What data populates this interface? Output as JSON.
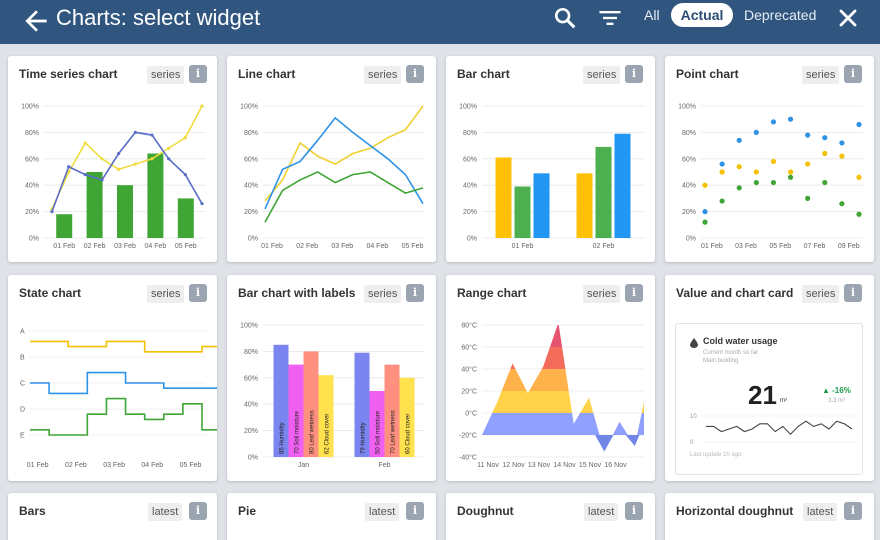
{
  "header": {
    "title": "Charts: select widget",
    "filters": [
      "All",
      "Actual",
      "Deprecated"
    ],
    "active_filter": "Actual",
    "icons": [
      "arrow-back-icon",
      "search-icon",
      "filter-list-icon",
      "close-icon"
    ]
  },
  "colors": {
    "topbar": "#305680",
    "background": "#dfe3e8",
    "green": "#3fa535",
    "yellow": "#f5d000",
    "blue": "#2e92e6",
    "orange": "#ffb400"
  },
  "cards": [
    {
      "title": "Time series chart",
      "badge": "series"
    },
    {
      "title": "Line chart",
      "badge": "series"
    },
    {
      "title": "Bar chart",
      "badge": "series"
    },
    {
      "title": "Point chart",
      "badge": "series"
    },
    {
      "title": "State chart",
      "badge": "series"
    },
    {
      "title": "Bar chart with labels",
      "badge": "series"
    },
    {
      "title": "Range chart",
      "badge": "series"
    },
    {
      "title": "Value and chart card",
      "badge": "series"
    },
    {
      "title": "Bars",
      "badge": "latest"
    },
    {
      "title": "Pie",
      "badge": "latest"
    },
    {
      "title": "Doughnut",
      "badge": "latest"
    },
    {
      "title": "Horizontal doughnut",
      "badge": "latest"
    }
  ],
  "info_label": "i",
  "chart_data": [
    {
      "type": "bar",
      "title": "Time series chart",
      "categories": [
        "01 Feb",
        "02 Feb",
        "03 Feb",
        "04 Feb",
        "05 Feb"
      ],
      "y_ticks": [
        "0%",
        "20%",
        "40%",
        "60%",
        "80%",
        "100%"
      ],
      "ylim": [
        0,
        100
      ],
      "bars": [
        18,
        50,
        40,
        64,
        30
      ],
      "lines": [
        {
          "color": "#f0dc3c",
          "x": [
            0,
            0.5,
            1,
            1.5,
            2,
            2.5,
            3,
            3.5,
            4,
            4.5
          ],
          "values": [
            22,
            50,
            72,
            60,
            52,
            56,
            60,
            68,
            76,
            100
          ]
        },
        {
          "color": "#5a6ec8",
          "x": [
            0,
            0.5,
            1,
            1.5,
            2,
            2.5,
            3,
            3.5,
            4,
            4.5
          ],
          "values": [
            20,
            54,
            48,
            44,
            64,
            80,
            78,
            60,
            48,
            26
          ]
        }
      ]
    },
    {
      "type": "line",
      "title": "Line chart",
      "x_labels": [
        "01 Feb",
        "02 Feb",
        "03 Feb",
        "04 Feb",
        "05 Feb"
      ],
      "y_ticks": [
        "0%",
        "20%",
        "40%",
        "60%",
        "80%",
        "100%"
      ],
      "ylim": [
        0,
        100
      ],
      "series": [
        {
          "color": "#f0d030",
          "x": [
            0,
            0.5,
            1,
            1.5,
            2,
            2.5,
            3,
            3.5,
            4,
            4.5
          ],
          "values": [
            28,
            44,
            72,
            62,
            56,
            64,
            68,
            76,
            82,
            100
          ]
        },
        {
          "color": "#2e92e6",
          "x": [
            0,
            0.5,
            1,
            1.5,
            2,
            2.5,
            3,
            3.5,
            4,
            4.5
          ],
          "values": [
            22,
            52,
            58,
            74,
            91,
            80,
            70,
            60,
            48,
            26
          ]
        },
        {
          "color": "#3fa535",
          "x": [
            0,
            0.5,
            1,
            1.5,
            2,
            2.5,
            3,
            3.5,
            4,
            4.5
          ],
          "values": [
            12,
            36,
            44,
            50,
            42,
            48,
            50,
            42,
            34,
            38
          ]
        }
      ]
    },
    {
      "type": "bar",
      "title": "Bar chart",
      "categories": [
        "01 Feb",
        "02 Feb"
      ],
      "y_ticks": [
        "0%",
        "20%",
        "40%",
        "60%",
        "80%",
        "100%"
      ],
      "ylim": [
        0,
        100
      ],
      "series": [
        {
          "color": "#ffc107",
          "values": [
            61,
            49
          ]
        },
        {
          "color": "#4caf50",
          "values": [
            39,
            69
          ]
        },
        {
          "color": "#2196f3",
          "values": [
            49,
            79
          ]
        }
      ]
    },
    {
      "type": "scatter",
      "title": "Point chart",
      "x_labels": [
        "01 Feb",
        "03 Feb",
        "05 Feb",
        "07 Feb",
        "09 Feb"
      ],
      "y_ticks": [
        "0%",
        "20%",
        "40%",
        "60%",
        "80%",
        "100%"
      ],
      "ylim": [
        0,
        100
      ],
      "series": [
        {
          "color": "#2e92e6",
          "x": [
            0,
            0.5,
            1,
            1.5,
            2,
            2.5,
            3,
            3.5,
            4,
            4.5
          ],
          "values": [
            20,
            56,
            74,
            80,
            88,
            90,
            78,
            76,
            72,
            86
          ]
        },
        {
          "color": "#f5c000",
          "x": [
            0,
            0.5,
            1,
            1.5,
            2,
            2.5,
            3,
            3.5,
            4,
            4.5
          ],
          "values": [
            40,
            50,
            54,
            50,
            58,
            50,
            56,
            64,
            62,
            46
          ]
        },
        {
          "color": "#3fa535",
          "x": [
            0,
            0.5,
            1,
            1.5,
            2,
            2.5,
            3,
            3.5,
            4,
            4.5
          ],
          "values": [
            12,
            28,
            38,
            42,
            42,
            46,
            30,
            42,
            26,
            18
          ]
        }
      ]
    },
    {
      "type": "line",
      "title": "State chart",
      "x_labels": [
        "01 Feb",
        "02 Feb",
        "03 Feb",
        "04 Feb",
        "05 Feb"
      ],
      "states": [
        "A",
        "B",
        "C",
        "D",
        "E"
      ],
      "series": [
        {
          "color": "#f5c000",
          "x": [
            0,
            0.5,
            1,
            1.5,
            2,
            2.5,
            3,
            3.5,
            4,
            4.5
          ],
          "levels": [
            0.4,
            0.4,
            0.6,
            0.6,
            0.4,
            0.4,
            0.8,
            0.8,
            0.8,
            0.6
          ]
        },
        {
          "color": "#2e92e6",
          "x": [
            0,
            0.5,
            1,
            1.5,
            2,
            2.5,
            3,
            3.5,
            4,
            4.5
          ],
          "levels": [
            2.0,
            2.4,
            2.4,
            1.6,
            1.6,
            2.0,
            2.0,
            2.2,
            2.2,
            2.2
          ]
        },
        {
          "color": "#3fa535",
          "x": [
            0,
            0.5,
            1,
            1.5,
            2,
            2.5,
            3,
            3.5,
            4,
            4.5
          ],
          "levels": [
            3.8,
            4.0,
            4.0,
            3.2,
            2.6,
            3.2,
            3.4,
            3.2,
            2.8,
            3.8
          ]
        }
      ]
    },
    {
      "type": "bar",
      "title": "Bar chart with labels",
      "categories": [
        "Jan",
        "Feb"
      ],
      "y_ticks": [
        "0%",
        "20%",
        "40%",
        "60%",
        "80%",
        "100%"
      ],
      "ylim": [
        0,
        100
      ],
      "series": [
        {
          "name": "Humidity",
          "color": "#7b85f0",
          "values": [
            85,
            79
          ]
        },
        {
          "name": "Soil moisture",
          "color": "#f060f0",
          "values": [
            70,
            50
          ]
        },
        {
          "name": "Leaf wetness",
          "color": "#ff9080",
          "values": [
            80,
            70
          ]
        },
        {
          "name": "Cloud cover",
          "color": "#ffe24d",
          "values": [
            62,
            60
          ]
        }
      ]
    },
    {
      "type": "area",
      "title": "Range chart",
      "x_labels": [
        "11 Nov",
        "12 Nov",
        "13 Nov",
        "14 Nov",
        "15 Nov",
        "16 Nov"
      ],
      "y_ticks": [
        "-40°C",
        "-20°C",
        "0°C",
        "20°C",
        "40°C",
        "60°C",
        "80°C"
      ],
      "ylim": [
        -40,
        80
      ],
      "x": [
        0,
        0.5,
        1,
        1.5,
        2,
        2.5,
        3,
        3.5,
        4,
        4.5,
        5,
        5.3
      ],
      "values": [
        -20,
        10,
        45,
        18,
        42,
        82,
        -10,
        14,
        -35,
        -8,
        -30,
        10
      ]
    },
    {
      "type": "line",
      "title": "Value and chart card",
      "label": "Cold water usage",
      "subtitle1": "Current month so far",
      "subtitle2": "Main building",
      "value": "21",
      "unit": "m³",
      "delta": "▲ -16%",
      "delta_note": "3.3 m³",
      "y_ticks": [
        "10",
        "0"
      ],
      "footer": "Last update 1h ago",
      "values": [
        6,
        6,
        4,
        5,
        6,
        4,
        5,
        7,
        7,
        4,
        6,
        3,
        6,
        8,
        6,
        7,
        5,
        8,
        7,
        5
      ]
    }
  ]
}
